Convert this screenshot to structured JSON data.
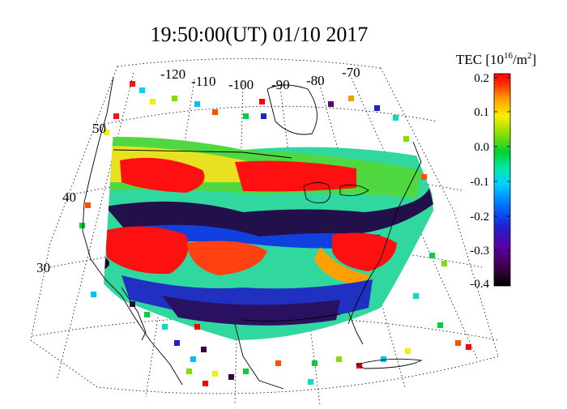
{
  "title": "19:50:00(UT)  01/10 2017",
  "map": {
    "lon_labels": [
      "-120",
      "-110",
      "-100",
      "-90",
      "-80",
      "-70"
    ],
    "lat_labels": [
      "50",
      "40",
      "30"
    ],
    "grid_style": "dotted",
    "projection": "polar stereographic, North America"
  },
  "colorbar": {
    "title_prefix": "TEC [10",
    "title_exp": "16",
    "title_suffix": "/m",
    "title_sup2": "2",
    "title_close": "]",
    "ticks": [
      "0.2",
      "0.1",
      "0.0",
      "-0.1",
      "-0.2",
      "-0.3",
      "-0.4"
    ],
    "range": [
      -0.4,
      0.2
    ],
    "colors": [
      "#3a0040",
      "#5a006e",
      "#2020c8",
      "#0060ff",
      "#00c0ff",
      "#00e0c0",
      "#00d040",
      "#80e000",
      "#f0f000",
      "#ffb000",
      "#ff5000",
      "#ff0000"
    ]
  }
}
